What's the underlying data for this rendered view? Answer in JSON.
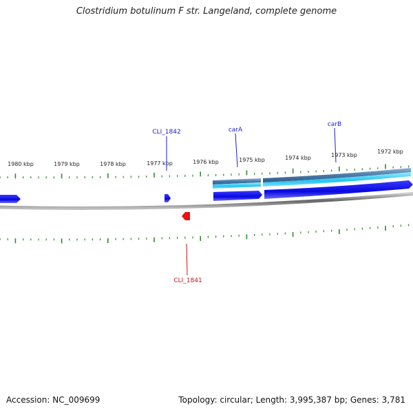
{
  "title": "Clostridium botulinum F str. Langeland, complete genome",
  "footer": {
    "accession": "Accession: NC_009699",
    "summary": "Topology: circular; Length: 3,995,387 bp; Genes: 3,781"
  },
  "ruler_labels": [
    "1980 kbp",
    "1979 kbp",
    "1978 kbp",
    "1977 kbp",
    "1976 kbp",
    "1975 kbp",
    "1974 kbp",
    "1973 kbp",
    "1972 kbp"
  ],
  "genes": [
    {
      "name": "CLI_1842",
      "strand": "forward",
      "color": "#1a1acc"
    },
    {
      "name": "carA",
      "strand": "forward",
      "color": "#1a1acc"
    },
    {
      "name": "carB",
      "strand": "forward",
      "color": "#1a1acc"
    },
    {
      "name": "CLI_1841",
      "strand": "reverse",
      "color": "#cc1111"
    }
  ],
  "colors": {
    "forward_gene": "#0a0ae6",
    "reverse_gene": "#ee1111",
    "tick": "#2a8a2a",
    "backbone": "#777777",
    "track_light": "#33ccee",
    "track_dark": "#4a7aa8"
  }
}
